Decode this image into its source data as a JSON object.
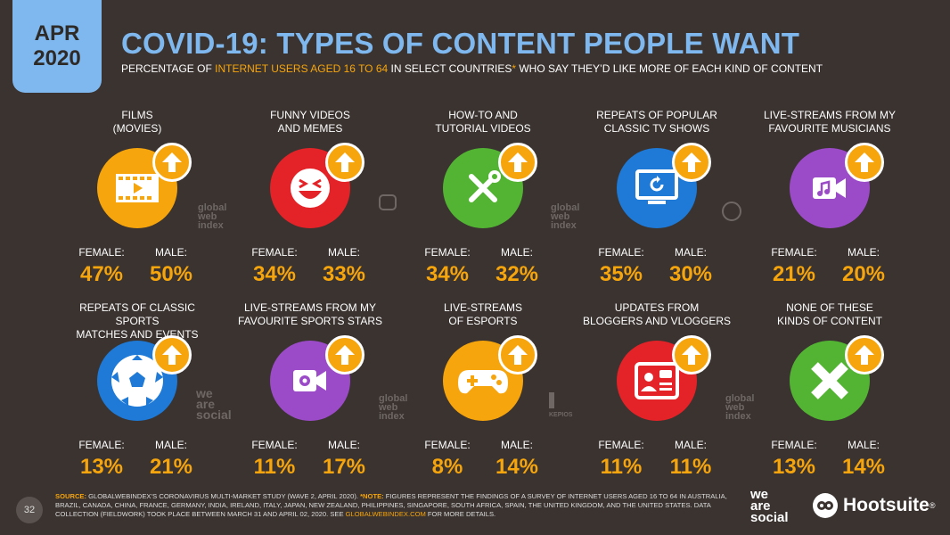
{
  "header": {
    "month": "APR",
    "year": "2020",
    "title": "COVID-19: TYPES OF CONTENT PEOPLE WANT",
    "subtitle_pre": "PERCENTAGE OF ",
    "subtitle_highlight": "INTERNET USERS AGED 16 TO 64",
    "subtitle_post": " IN SELECT COUNTRIES",
    "subtitle_asterisk": "*",
    "subtitle_end": " WHO SAY THEY’D LIKE MORE OF EACH KIND OF CONTENT"
  },
  "stat_labels": {
    "female": "FEMALE:",
    "male": "MALE:"
  },
  "items": [
    {
      "label1": "FILMS",
      "label2": "(MOVIES)",
      "icon": "film-icon",
      "color": "#f6a50c",
      "female": "47%",
      "male": "50%"
    },
    {
      "label1": "FUNNY VIDEOS",
      "label2": "AND MEMES",
      "icon": "laughing-face-icon",
      "color": "#e32327",
      "female": "34%",
      "male": "33%"
    },
    {
      "label1": "HOW-TO AND",
      "label2": "TUTORIAL VIDEOS",
      "icon": "tools-icon",
      "color": "#52b432",
      "female": "34%",
      "male": "32%"
    },
    {
      "label1": "REPEATS OF POPULAR",
      "label2": "CLASSIC TV SHOWS",
      "icon": "tv-replay-icon",
      "color": "#1e7ad6",
      "female": "35%",
      "male": "30%"
    },
    {
      "label1": "LIVE-STREAMS FROM MY",
      "label2": "FAVOURITE MUSICIANS",
      "icon": "music-video-icon",
      "color": "#9b4bc8",
      "female": "21%",
      "male": "20%"
    },
    {
      "label1": "REPEATS OF CLASSIC SPORTS",
      "label2": "MATCHES AND EVENTS",
      "icon": "soccer-ball-icon",
      "color": "#1e7ad6",
      "female": "13%",
      "male": "21%"
    },
    {
      "label1": "LIVE-STREAMS FROM MY",
      "label2": "FAVOURITE SPORTS STARS",
      "icon": "video-camera-icon",
      "color": "#9b4bc8",
      "female": "11%",
      "male": "17%"
    },
    {
      "label1": "LIVE-STREAMS",
      "label2": "OF ESPORTS",
      "icon": "gamepad-icon",
      "color": "#f6a50c",
      "female": "8%",
      "male": "14%"
    },
    {
      "label1": "UPDATES FROM",
      "label2": "BLOGGERS AND VLOGGERS",
      "icon": "vlogger-icon",
      "color": "#e32327",
      "female": "11%",
      "male": "11%"
    },
    {
      "label1": "NONE OF THESE",
      "label2": "KINDS OF CONTENT",
      "icon": "cross-icon",
      "color": "#52b432",
      "female": "13%",
      "male": "14%"
    }
  ],
  "footer": {
    "page_number": "32",
    "source_key": "SOURCE:",
    "source_text": " GLOBALWEBINDEX’S CORONAVIRUS MULTI-MARKET STUDY (WAVE 2, APRIL 2020). ",
    "note_key": "*NOTE:",
    "note_text": " FIGURES REPRESENT THE FINDINGS OF A SURVEY OF INTERNET USERS AGED 16 TO 64 IN AUSTRALIA, BRAZIL, CANADA, CHINA, FRANCE, GERMANY, INDIA, IRELAND, ITALY, JAPAN, NEW ZEALAND, PHILIPPINES, SINGAPORE, SOUTH AFRICA, SPAIN, THE UNITED KINGDOM, AND THE UNITED STATES. DATA COLLECTION (FIELDWORK) TOOK PLACE BETWEEN MARCH 31 AND APRIL 02, 2020. SEE ",
    "link_text": "GLOBALWEBINDEX.COM",
    "end_text": " FOR MORE DETAILS.",
    "was_logo": [
      "we",
      "are",
      "social"
    ],
    "hootsuite": "Hootsuite",
    "hootsuite_mark": "®"
  },
  "watermarks": {
    "gwi": [
      "global",
      "web",
      "index"
    ],
    "was": [
      "we",
      "are",
      "social"
    ],
    "kepios": "KEPIOS"
  }
}
